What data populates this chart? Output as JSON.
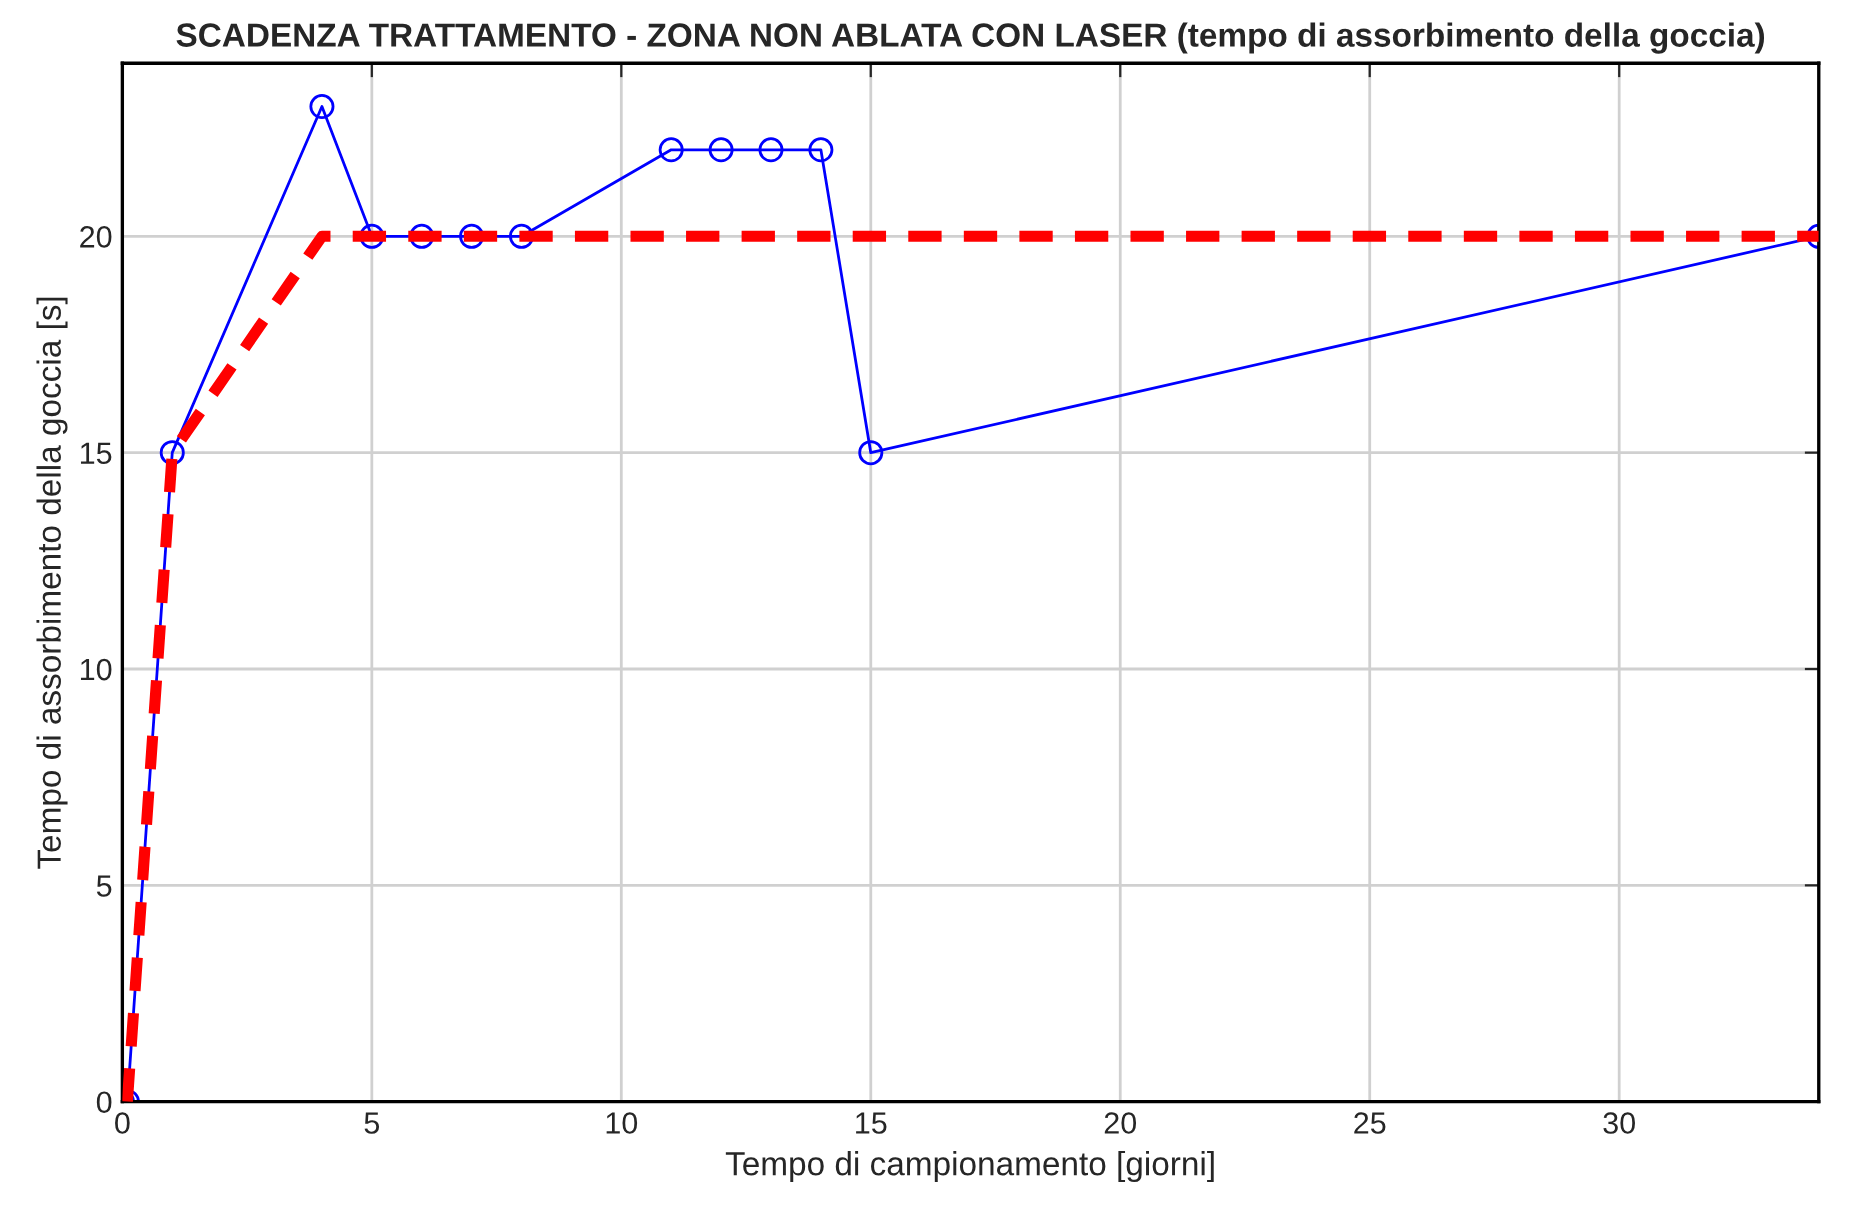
{
  "chart_data": {
    "type": "line",
    "title": "SCADENZA TRATTAMENTO - ZONA NON ABLATA CON LASER (tempo di assorbimento della goccia)",
    "xlabel": "Tempo di campionamento [giorni]",
    "ylabel": "Tempo di assorbimento della goccia [s]",
    "series": [
      {
        "color": "#0000ff",
        "marker": "circle",
        "line_style": "solid",
        "x": [
          0,
          0.1,
          1,
          4,
          5,
          6,
          7,
          8,
          11,
          12,
          13,
          14,
          15,
          34
        ],
        "values": [
          0,
          0,
          15,
          23,
          20,
          20,
          20,
          20,
          22,
          22,
          22,
          22,
          15,
          20
        ]
      },
      {
        "color": "#ff0000",
        "marker": "none",
        "line_style": "dashed",
        "x": [
          0.1,
          1,
          4,
          34
        ],
        "values": [
          0,
          15,
          20,
          20
        ]
      }
    ],
    "xlim": [
      0,
      34
    ],
    "xticks": [
      0,
      5,
      10,
      15,
      20,
      25,
      30
    ],
    "ylim": [
      0,
      24
    ],
    "yticks": [
      0,
      5,
      10,
      15,
      20
    ],
    "grid": true,
    "legend": false
  }
}
